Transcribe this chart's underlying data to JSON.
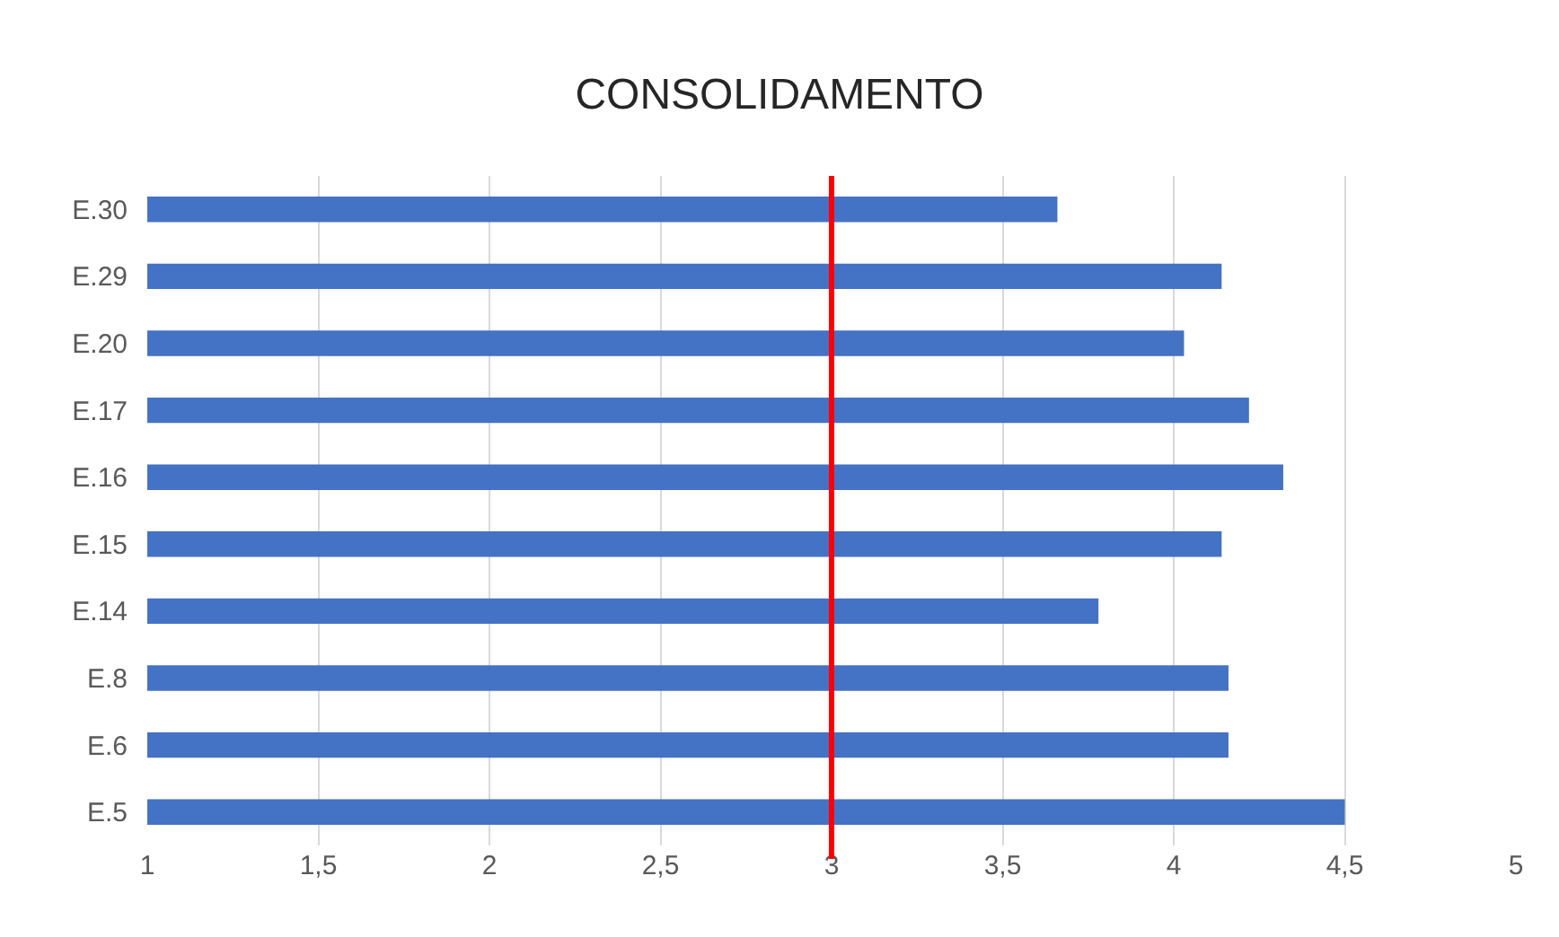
{
  "chart_data": {
    "type": "bar",
    "title": "CONSOLIDAMENTO",
    "orientation": "horizontal",
    "categories": [
      "E.30",
      "E.29",
      "E.20",
      "E.17",
      "E.16",
      "E.15",
      "E.14",
      "E.8",
      "E.6",
      "E.5"
    ],
    "values": [
      3.66,
      4.14,
      4.03,
      4.22,
      4.32,
      4.14,
      3.78,
      4.16,
      4.16,
      4.5
    ],
    "color": "#4472c4",
    "xlim": [
      1,
      5
    ],
    "xticks": [
      1,
      {
        "value": 1.5,
        "label": "1,5"
      },
      2,
      {
        "value": 2.5,
        "label": "2,5"
      },
      3,
      {
        "value": 3.5,
        "label": "3,5"
      },
      4,
      {
        "value": 4.5,
        "label": "4,5"
      },
      5
    ],
    "ref_lines": [
      {
        "axis": "x",
        "value": 3,
        "color": "#ff0000"
      }
    ],
    "grid": "x"
  }
}
